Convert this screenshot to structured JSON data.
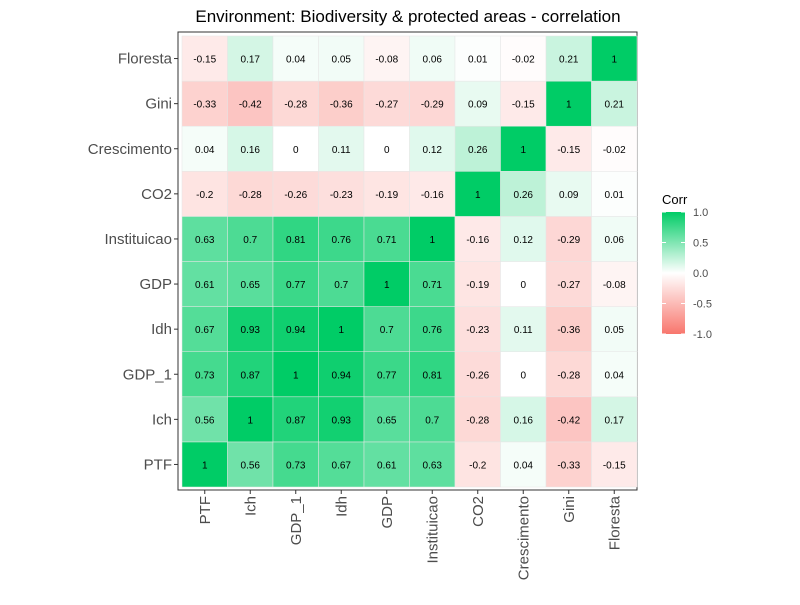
{
  "chart_data": {
    "type": "heatmap",
    "title": "Environment: Biodiversity & protected areas - correlation",
    "variables": [
      "PTF",
      "Ich",
      "GDP_1",
      "Idh",
      "GDP",
      "Instituicao",
      "CO2",
      "Crescimento",
      "Gini",
      "Floresta"
    ],
    "matrix": [
      [
        1,
        0.56,
        0.73,
        0.67,
        0.61,
        0.63,
        -0.2,
        0.04,
        -0.33,
        -0.15
      ],
      [
        0.56,
        1,
        0.87,
        0.93,
        0.65,
        0.7,
        -0.28,
        0.16,
        -0.42,
        0.17
      ],
      [
        0.73,
        0.87,
        1,
        0.94,
        0.77,
        0.81,
        -0.26,
        0,
        -0.28,
        0.04
      ],
      [
        0.67,
        0.93,
        0.94,
        1,
        0.7,
        0.76,
        -0.23,
        0.11,
        -0.36,
        0.05
      ],
      [
        0.61,
        0.65,
        0.77,
        0.7,
        1,
        0.71,
        -0.19,
        0,
        -0.27,
        -0.08
      ],
      [
        0.63,
        0.7,
        0.81,
        0.76,
        0.71,
        1,
        -0.16,
        0.12,
        -0.29,
        0.06
      ],
      [
        -0.2,
        -0.28,
        -0.26,
        -0.23,
        -0.19,
        -0.16,
        1,
        0.26,
        0.09,
        0.01
      ],
      [
        0.04,
        0.16,
        0,
        0.11,
        0,
        0.12,
        0.26,
        1,
        -0.15,
        -0.02
      ],
      [
        -0.33,
        -0.42,
        -0.28,
        -0.36,
        -0.27,
        -0.29,
        0.09,
        -0.15,
        1,
        0.21
      ],
      [
        -0.15,
        0.17,
        0.04,
        0.05,
        -0.08,
        0.06,
        0.01,
        -0.02,
        0.21,
        1
      ]
    ],
    "legend": {
      "title": "Corr",
      "ticks": [
        1.0,
        0.5,
        0.0,
        -0.5,
        -1.0
      ],
      "tick_labels": [
        "1.0",
        "0.5",
        "0.0",
        "-0.5",
        "-1.0"
      ],
      "placement": "right"
    },
    "value_range": [
      -1,
      1
    ],
    "colors": {
      "high": "#00cc66",
      "mid": "#ffffff",
      "low": "#f8766d"
    },
    "grid": false
  }
}
